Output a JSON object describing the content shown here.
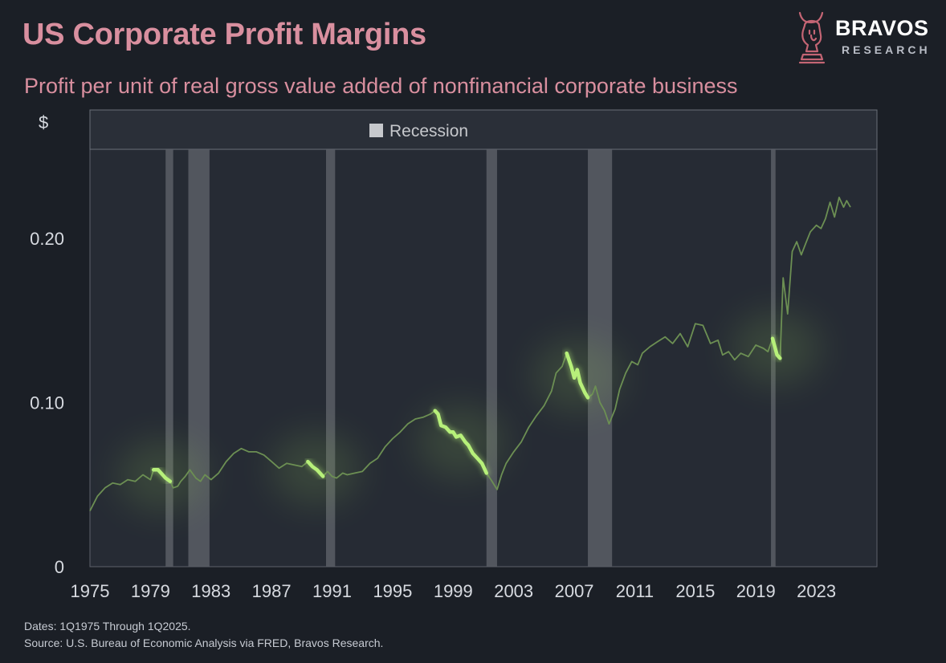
{
  "header": {
    "title": "US Corporate Profit Margins",
    "subtitle": "Profit per unit of real gross value added of nonfinancial corporate business"
  },
  "brand": {
    "name": "BRAVOS",
    "sub": "RESEARCH",
    "logo_icon": "bull-knight-icon"
  },
  "footer": {
    "dates": "Dates: 1Q1975 Through 1Q2025.",
    "source": "Source: U.S. Bureau of Economic Analysis via FRED, Bravos Research."
  },
  "colors": {
    "background": "#1b1f26",
    "plot_bg": "#262b34",
    "line": "#6c8f53",
    "highlight": "#b7f07a",
    "recession": "#5a5e66",
    "title": "#d98f9f",
    "axis_text": "#d7dae0"
  },
  "chart_data": {
    "type": "line",
    "title": "US Corporate Profit Margins",
    "subtitle": "Profit per unit of real gross value added of nonfinancial corporate business",
    "ylabel": "$",
    "xlabel": "",
    "xlim": [
      1975,
      2027
    ],
    "ylim": [
      0,
      0.25
    ],
    "x_ticks": [
      "1975",
      "1979",
      "1983",
      "1987",
      "1991",
      "1995",
      "1999",
      "2003",
      "2007",
      "2011",
      "2015",
      "2019",
      "2023"
    ],
    "y_ticks": [
      "0",
      "0.10",
      "0.20"
    ],
    "legend": {
      "position": "top",
      "entries": [
        "Recession"
      ]
    },
    "grid": false,
    "recessions": [
      [
        1980.0,
        1980.5
      ],
      [
        1981.5,
        1982.9
      ],
      [
        1990.6,
        1991.2
      ],
      [
        2001.2,
        2001.9
      ],
      [
        2007.9,
        2009.5
      ],
      [
        2020.0,
        2020.3
      ]
    ],
    "series": [
      {
        "points": [
          [
            1975.0,
            0.034
          ],
          [
            1975.5,
            0.043
          ],
          [
            1976.0,
            0.048
          ],
          [
            1976.5,
            0.051
          ],
          [
            1977.0,
            0.05
          ],
          [
            1977.5,
            0.053
          ],
          [
            1978.0,
            0.052
          ],
          [
            1978.5,
            0.056
          ],
          [
            1979.0,
            0.053
          ],
          [
            1979.2,
            0.059
          ],
          [
            1979.5,
            0.059
          ],
          [
            1979.8,
            0.056
          ],
          [
            1980.0,
            0.054
          ],
          [
            1980.3,
            0.052
          ],
          [
            1980.5,
            0.048
          ],
          [
            1980.8,
            0.049
          ],
          [
            1981.0,
            0.052
          ],
          [
            1981.3,
            0.055
          ],
          [
            1981.6,
            0.059
          ],
          [
            1982.0,
            0.054
          ],
          [
            1982.3,
            0.052
          ],
          [
            1982.6,
            0.056
          ],
          [
            1983.0,
            0.053
          ],
          [
            1983.5,
            0.057
          ],
          [
            1984.0,
            0.064
          ],
          [
            1984.5,
            0.069
          ],
          [
            1985.0,
            0.072
          ],
          [
            1985.5,
            0.07
          ],
          [
            1986.0,
            0.07
          ],
          [
            1986.5,
            0.068
          ],
          [
            1987.0,
            0.064
          ],
          [
            1987.5,
            0.06
          ],
          [
            1988.0,
            0.063
          ],
          [
            1988.5,
            0.062
          ],
          [
            1989.0,
            0.061
          ],
          [
            1989.4,
            0.064
          ],
          [
            1989.7,
            0.061
          ],
          [
            1990.0,
            0.059
          ],
          [
            1990.4,
            0.055
          ],
          [
            1990.7,
            0.058
          ],
          [
            1991.0,
            0.055
          ],
          [
            1991.3,
            0.054
          ],
          [
            1991.7,
            0.057
          ],
          [
            1992.0,
            0.056
          ],
          [
            1992.5,
            0.057
          ],
          [
            1993.0,
            0.058
          ],
          [
            1993.5,
            0.063
          ],
          [
            1994.0,
            0.066
          ],
          [
            1994.5,
            0.073
          ],
          [
            1995.0,
            0.078
          ],
          [
            1995.5,
            0.082
          ],
          [
            1996.0,
            0.087
          ],
          [
            1996.5,
            0.09
          ],
          [
            1997.0,
            0.091
          ],
          [
            1997.5,
            0.093
          ],
          [
            1997.8,
            0.095
          ],
          [
            1998.0,
            0.093
          ],
          [
            1998.2,
            0.086
          ],
          [
            1998.5,
            0.085
          ],
          [
            1998.8,
            0.082
          ],
          [
            1999.0,
            0.082
          ],
          [
            1999.2,
            0.079
          ],
          [
            1999.5,
            0.08
          ],
          [
            1999.8,
            0.076
          ],
          [
            2000.0,
            0.074
          ],
          [
            2000.3,
            0.069
          ],
          [
            2000.6,
            0.066
          ],
          [
            2000.9,
            0.063
          ],
          [
            2001.2,
            0.057
          ],
          [
            2001.5,
            0.053
          ],
          [
            2001.9,
            0.047
          ],
          [
            2002.2,
            0.056
          ],
          [
            2002.5,
            0.063
          ],
          [
            2003.0,
            0.07
          ],
          [
            2003.5,
            0.076
          ],
          [
            2004.0,
            0.085
          ],
          [
            2004.5,
            0.092
          ],
          [
            2005.0,
            0.098
          ],
          [
            2005.5,
            0.107
          ],
          [
            2005.8,
            0.118
          ],
          [
            2006.2,
            0.122
          ],
          [
            2006.5,
            0.13
          ],
          [
            2006.8,
            0.122
          ],
          [
            2007.0,
            0.115
          ],
          [
            2007.2,
            0.12
          ],
          [
            2007.4,
            0.112
          ],
          [
            2007.7,
            0.106
          ],
          [
            2007.9,
            0.103
          ],
          [
            2008.2,
            0.105
          ],
          [
            2008.4,
            0.11
          ],
          [
            2008.7,
            0.1
          ],
          [
            2009.0,
            0.095
          ],
          [
            2009.3,
            0.087
          ],
          [
            2009.7,
            0.096
          ],
          [
            2010.0,
            0.108
          ],
          [
            2010.4,
            0.118
          ],
          [
            2010.8,
            0.125
          ],
          [
            2011.2,
            0.123
          ],
          [
            2011.5,
            0.13
          ],
          [
            2012.0,
            0.134
          ],
          [
            2012.5,
            0.137
          ],
          [
            2013.0,
            0.14
          ],
          [
            2013.5,
            0.136
          ],
          [
            2014.0,
            0.142
          ],
          [
            2014.5,
            0.134
          ],
          [
            2015.0,
            0.148
          ],
          [
            2015.5,
            0.147
          ],
          [
            2016.0,
            0.136
          ],
          [
            2016.5,
            0.138
          ],
          [
            2016.8,
            0.129
          ],
          [
            2017.2,
            0.131
          ],
          [
            2017.6,
            0.126
          ],
          [
            2018.0,
            0.13
          ],
          [
            2018.5,
            0.128
          ],
          [
            2019.0,
            0.135
          ],
          [
            2019.5,
            0.133
          ],
          [
            2019.8,
            0.131
          ],
          [
            2020.1,
            0.139
          ],
          [
            2020.4,
            0.129
          ],
          [
            2020.6,
            0.127
          ],
          [
            2020.8,
            0.176
          ],
          [
            2021.1,
            0.154
          ],
          [
            2021.4,
            0.192
          ],
          [
            2021.7,
            0.198
          ],
          [
            2022.0,
            0.19
          ],
          [
            2022.3,
            0.197
          ],
          [
            2022.6,
            0.204
          ],
          [
            2023.0,
            0.208
          ],
          [
            2023.3,
            0.206
          ],
          [
            2023.6,
            0.212
          ],
          [
            2023.9,
            0.222
          ],
          [
            2024.2,
            0.213
          ],
          [
            2024.5,
            0.225
          ],
          [
            2024.8,
            0.219
          ],
          [
            2025.0,
            0.223
          ],
          [
            2025.25,
            0.219
          ]
        ]
      }
    ],
    "highlights": [
      [
        1979.2,
        1980.3
      ],
      [
        1989.4,
        1990.4
      ],
      [
        1997.8,
        2001.2
      ],
      [
        2006.5,
        2007.9
      ],
      [
        2020.1,
        2020.6
      ]
    ]
  }
}
